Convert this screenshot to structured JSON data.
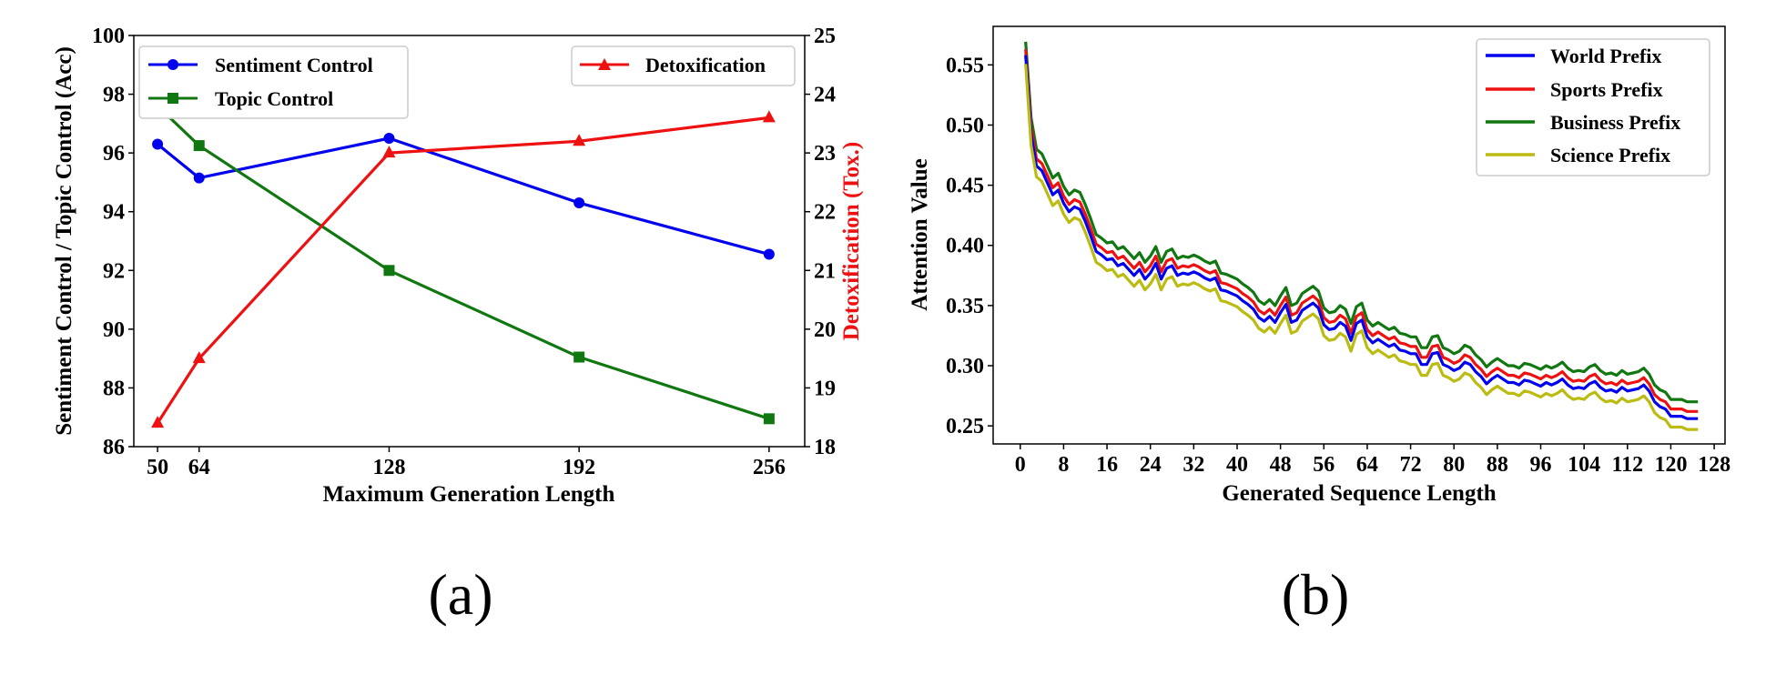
{
  "chart_data": [
    {
      "type": "line",
      "panel_label": "(a)",
      "xlabel": "Maximum Generation Length",
      "ylabel": "Sentiment Control / Topic Control (Acc)",
      "y2label": "Detoxification (Tox.)",
      "x": [
        50,
        64,
        128,
        192,
        256
      ],
      "xticks": [
        "50",
        "64",
        "128",
        "192",
        "256"
      ],
      "xlim": [
        42,
        268
      ],
      "ylim": [
        86,
        100
      ],
      "yticks": [
        "86",
        "88",
        "90",
        "92",
        "94",
        "96",
        "98",
        "100"
      ],
      "y2lim": [
        18,
        25
      ],
      "y2ticks": [
        "18",
        "19",
        "20",
        "21",
        "22",
        "23",
        "24",
        "25"
      ],
      "series": [
        {
          "name": "Sentiment Control",
          "axis": "left",
          "marker": "circle",
          "color": "#0000ee",
          "values": [
            96.3,
            95.15,
            96.5,
            94.3,
            92.55
          ]
        },
        {
          "name": "Topic Control",
          "axis": "left",
          "marker": "square",
          "color": "#117711",
          "values": [
            97.6,
            96.25,
            92.0,
            89.05,
            86.95
          ]
        },
        {
          "name": "Detoxification",
          "axis": "right",
          "marker": "triangle",
          "color": "#ee1111",
          "values": [
            18.4,
            19.5,
            23.0,
            23.2,
            23.6
          ]
        }
      ],
      "legend_left": [
        "Sentiment Control",
        "Topic Control"
      ],
      "legend_right": [
        "Detoxification"
      ],
      "legend_placement": "top-left and top-right"
    },
    {
      "type": "line",
      "panel_label": "(b)",
      "xlabel": "Generated Sequence Length",
      "ylabel": "Attention Value",
      "xlim": [
        -5,
        130
      ],
      "ylim": [
        0.235,
        0.582
      ],
      "xticks": [
        "0",
        "8",
        "16",
        "24",
        "32",
        "40",
        "48",
        "56",
        "64",
        "72",
        "80",
        "88",
        "96",
        "104",
        "112",
        "120",
        "128"
      ],
      "yticks": [
        "0.25",
        "0.30",
        "0.35",
        "0.40",
        "0.45",
        "0.50",
        "0.55"
      ],
      "x": [
        1,
        2,
        3,
        4,
        5,
        6,
        7,
        8,
        9,
        10,
        11,
        12,
        13,
        14,
        15,
        16,
        17,
        18,
        19,
        20,
        21,
        22,
        23,
        24,
        25,
        26,
        27,
        28,
        29,
        30,
        31,
        32,
        33,
        34,
        35,
        36,
        37,
        38,
        39,
        40,
        41,
        42,
        43,
        44,
        45,
        46,
        47,
        48,
        49,
        50,
        51,
        52,
        53,
        54,
        55,
        56,
        57,
        58,
        59,
        60,
        61,
        62,
        63,
        64,
        65,
        66,
        67,
        68,
        69,
        70,
        71,
        72,
        73,
        74,
        75,
        76,
        77,
        78,
        79,
        80,
        81,
        82,
        83,
        84,
        85,
        86,
        87,
        88,
        89,
        90,
        91,
        92,
        93,
        94,
        95,
        96,
        97,
        98,
        99,
        100,
        101,
        102,
        103,
        104,
        105,
        106,
        107,
        108,
        109,
        110,
        111,
        112,
        113,
        114,
        115,
        116,
        117,
        118,
        119,
        120,
        121,
        122,
        123,
        124,
        125
      ],
      "base": [
        0.558,
        0.492,
        0.466,
        0.462,
        0.452,
        0.442,
        0.446,
        0.435,
        0.428,
        0.432,
        0.43,
        0.42,
        0.408,
        0.395,
        0.392,
        0.388,
        0.389,
        0.383,
        0.385,
        0.38,
        0.375,
        0.38,
        0.372,
        0.377,
        0.385,
        0.372,
        0.381,
        0.383,
        0.375,
        0.377,
        0.376,
        0.378,
        0.376,
        0.373,
        0.371,
        0.373,
        0.363,
        0.362,
        0.36,
        0.358,
        0.354,
        0.351,
        0.347,
        0.34,
        0.337,
        0.341,
        0.336,
        0.344,
        0.351,
        0.336,
        0.338,
        0.346,
        0.349,
        0.352,
        0.348,
        0.334,
        0.33,
        0.331,
        0.336,
        0.333,
        0.321,
        0.335,
        0.338,
        0.324,
        0.319,
        0.322,
        0.319,
        0.316,
        0.318,
        0.313,
        0.312,
        0.31,
        0.31,
        0.301,
        0.301,
        0.31,
        0.311,
        0.301,
        0.299,
        0.296,
        0.298,
        0.303,
        0.301,
        0.295,
        0.291,
        0.285,
        0.289,
        0.292,
        0.289,
        0.286,
        0.286,
        0.284,
        0.288,
        0.287,
        0.285,
        0.283,
        0.286,
        0.284,
        0.286,
        0.289,
        0.284,
        0.281,
        0.282,
        0.281,
        0.285,
        0.287,
        0.282,
        0.279,
        0.28,
        0.278,
        0.282,
        0.279,
        0.28,
        0.281,
        0.284,
        0.279,
        0.27,
        0.266,
        0.264,
        0.258,
        0.258,
        0.258,
        0.256,
        0.256,
        0.256
      ],
      "series": [
        {
          "name": "World Prefix",
          "color": "#0000ee",
          "offset": 0.0
        },
        {
          "name": "Sports Prefix",
          "color": "#ee1111",
          "offset": 0.006
        },
        {
          "name": "Business Prefix",
          "color": "#117711",
          "offset": 0.014
        },
        {
          "name": "Science Prefix",
          "color": "#bbbb11",
          "offset": -0.009
        }
      ],
      "legend_placement": "top-right"
    }
  ]
}
